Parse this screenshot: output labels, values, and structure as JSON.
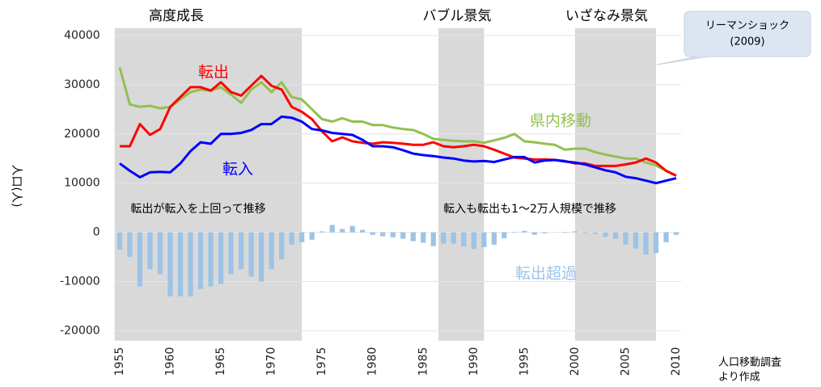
{
  "chart_data": {
    "type": "combo",
    "y_label": "人口(人)",
    "source": [
      "人口移動調査",
      "より作成"
    ],
    "callout": [
      "リーマンショック",
      "(2009)"
    ],
    "annotations": [
      "転出が転入を上回って推移",
      "転入も転出も1～2万人規模で推移"
    ],
    "periods": [
      {
        "label": "高度成長",
        "start": 1954.5,
        "end": 1973
      },
      {
        "label": "バブル景気",
        "start": 1986.5,
        "end": 1991
      },
      {
        "label": "いざなみ景気",
        "start": 2000,
        "end": 2008
      }
    ],
    "x": [
      1955,
      1956,
      1957,
      1958,
      1959,
      1960,
      1961,
      1962,
      1963,
      1964,
      1965,
      1966,
      1967,
      1968,
      1969,
      1970,
      1971,
      1972,
      1973,
      1974,
      1975,
      1976,
      1977,
      1978,
      1979,
      1980,
      1981,
      1982,
      1983,
      1984,
      1985,
      1986,
      1987,
      1988,
      1989,
      1990,
      1991,
      1992,
      1993,
      1994,
      1995,
      1996,
      1997,
      1998,
      1999,
      2000,
      2001,
      2002,
      2003,
      2004,
      2005,
      2006,
      2007,
      2008,
      2009,
      2010
    ],
    "series": [
      {
        "name": "転出超過",
        "kind": "bar",
        "color": "#9dc3e6",
        "values": [
          -3500,
          -5000,
          -11000,
          -7500,
          -8500,
          -13000,
          -13000,
          -13000,
          -11500,
          -11000,
          -10500,
          -8500,
          -7500,
          -9000,
          -10000,
          -7500,
          -5500,
          -2500,
          -2000,
          -1500,
          200,
          1500,
          700,
          1300,
          500,
          -500,
          -800,
          -1000,
          -1300,
          -1800,
          -2100,
          -2800,
          -2300,
          -2300,
          -2900,
          -3400,
          -3000,
          -2500,
          -1200,
          100,
          300,
          -500,
          -200,
          0,
          -100,
          200,
          -200,
          -300,
          -900,
          -1300,
          -2500,
          -3300,
          -4500,
          -4200,
          -2000,
          -500
        ]
      },
      {
        "name": "県内移動",
        "kind": "line",
        "color": "#92c050",
        "values": [
          33500,
          26000,
          25500,
          25700,
          25200,
          25500,
          27000,
          28500,
          29000,
          28800,
          29500,
          28000,
          26300,
          29000,
          30500,
          28500,
          30500,
          27500,
          27000,
          25000,
          23000,
          22500,
          23200,
          22500,
          22500,
          21800,
          21800,
          21300,
          21000,
          20800,
          20000,
          19000,
          18800,
          18600,
          18500,
          18500,
          18200,
          18700,
          19200,
          20000,
          18500,
          18300,
          18000,
          17800,
          16800,
          17000,
          17000,
          16300,
          15800,
          15400,
          15000,
          15000,
          14200,
          13600,
          12500,
          11500
        ]
      },
      {
        "name": "転出",
        "kind": "line",
        "color": "#ff0000",
        "values": [
          17500,
          17500,
          22000,
          19800,
          21000,
          25500,
          27500,
          29500,
          29500,
          28800,
          30500,
          28500,
          27800,
          29800,
          31800,
          29800,
          29000,
          25500,
          24500,
          23000,
          20500,
          18500,
          19300,
          18500,
          18200,
          18000,
          18300,
          18200,
          18000,
          17800,
          17800,
          18300,
          17500,
          17300,
          17500,
          17800,
          17500,
          16800,
          16000,
          15200,
          15000,
          14800,
          14800,
          14700,
          14500,
          14000,
          14000,
          13500,
          13500,
          13500,
          13800,
          14200,
          15000,
          14200,
          12500,
          11500
        ]
      },
      {
        "name": "転入",
        "kind": "line",
        "color": "#0000ff",
        "values": [
          14000,
          12500,
          11200,
          12200,
          12300,
          12200,
          14000,
          16500,
          18300,
          18000,
          20000,
          20000,
          20200,
          20800,
          22000,
          22000,
          23500,
          23300,
          22500,
          21000,
          20700,
          20200,
          20000,
          19800,
          18800,
          17500,
          17500,
          17300,
          16700,
          16000,
          15700,
          15500,
          15200,
          15000,
          14600,
          14400,
          14500,
          14300,
          14800,
          15300,
          15300,
          14200,
          14600,
          14700,
          14400,
          14200,
          13800,
          13200,
          12600,
          12200,
          11300,
          11000,
          10500,
          10000,
          10500,
          11000
        ]
      }
    ],
    "xlim": [
      1954.5,
      2010.5
    ],
    "xticks": [
      1955,
      1960,
      1965,
      1970,
      1975,
      1980,
      1985,
      1990,
      1995,
      2000,
      2005,
      2010
    ],
    "ylim": [
      -22000,
      41500
    ],
    "yticks": [
      -20000,
      -10000,
      0,
      10000,
      20000,
      30000,
      40000
    ],
    "grid": true
  }
}
